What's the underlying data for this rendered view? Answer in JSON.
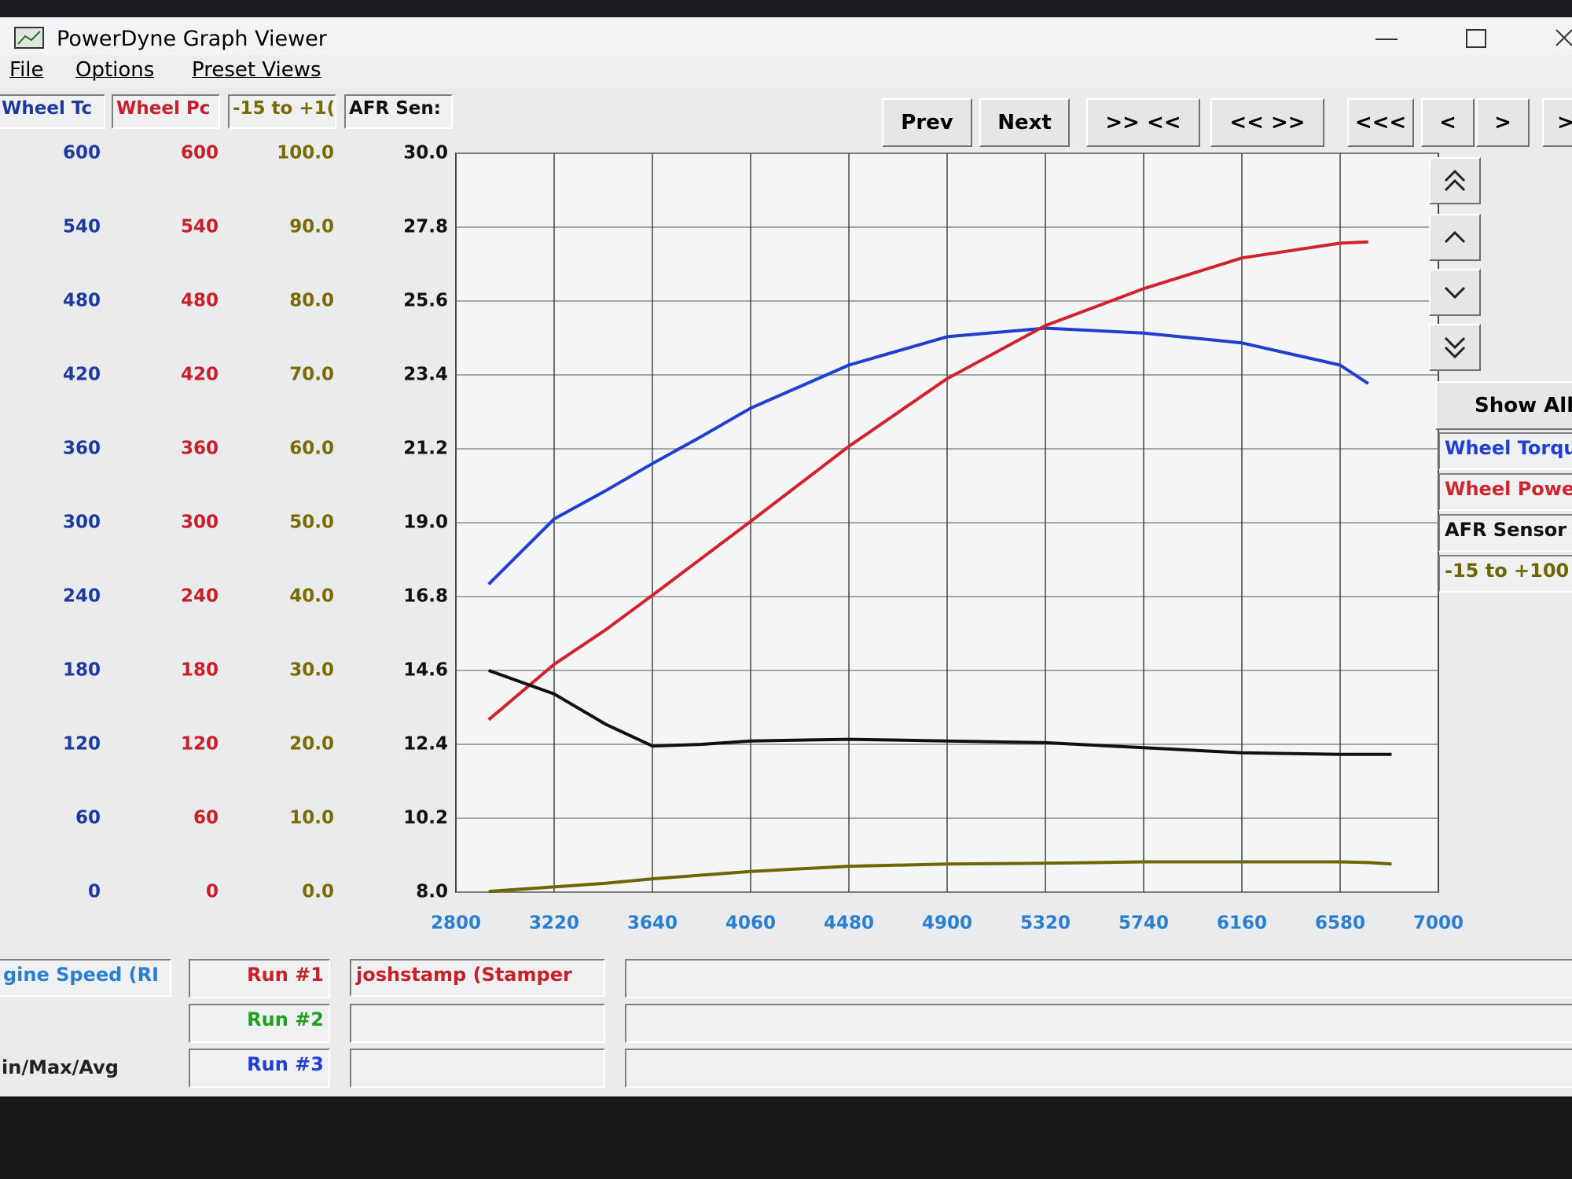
{
  "window": {
    "title": "PowerDyne Graph Viewer"
  },
  "menu": [
    "File",
    "Options",
    "Preset Views"
  ],
  "toolbar": [
    "Prev",
    "Next",
    ">> <<",
    "<< >>",
    "<<<",
    "<",
    ">",
    ">"
  ],
  "side_panel": {
    "show_all": "Show All"
  },
  "bottom": {
    "x_axis_name": "gine Speed (RI",
    "stats_label": "in/Max/Avg",
    "run_name": "joshstamp (Stamper",
    "runs": [
      {
        "label": "Run #1",
        "color": "#c8202a"
      },
      {
        "label": "Run #2",
        "color": "#1fa01f"
      },
      {
        "label": "Run #3",
        "color": "#1f3fcf"
      }
    ]
  },
  "chart_data": {
    "type": "line",
    "xlim": [
      2800,
      7000
    ],
    "xticks": [
      2800,
      3220,
      3640,
      4060,
      4480,
      4900,
      5320,
      5740,
      6160,
      6580,
      7000
    ],
    "x": [
      2940,
      3220,
      3440,
      3640,
      3850,
      4060,
      4480,
      4900,
      5320,
      5740,
      6160,
      6580,
      6700,
      6800
    ],
    "grid": true,
    "axes": [
      {
        "name": "Wheel Tc",
        "color": "#1f3a9c",
        "ylim": [
          0,
          600
        ],
        "yticks": [
          0,
          60,
          120,
          180,
          240,
          300,
          360,
          420,
          480,
          540,
          600
        ]
      },
      {
        "name": "Wheel Pc",
        "color": "#c8202a",
        "ylim": [
          0,
          600
        ],
        "yticks": [
          0,
          60,
          120,
          180,
          240,
          300,
          360,
          420,
          480,
          540,
          600
        ]
      },
      {
        "name": "-15 to +1(",
        "color": "#7a6a00",
        "ylim": [
          0,
          100
        ],
        "yticks": [
          {
            "value": 0,
            "label": "0.0"
          },
          {
            "value": 10,
            "label": "10.0"
          },
          {
            "value": 20,
            "label": "20.0"
          },
          {
            "value": 30,
            "label": "30.0"
          },
          {
            "value": 40,
            "label": "40.0"
          },
          {
            "value": 50,
            "label": "50.0"
          },
          {
            "value": 60,
            "label": "60.0"
          },
          {
            "value": 70,
            "label": "70.0"
          },
          {
            "value": 80,
            "label": "80.0"
          },
          {
            "value": 90,
            "label": "90.0"
          },
          {
            "value": 100,
            "label": "100.0"
          }
        ]
      },
      {
        "name": "AFR Sen:",
        "color": "#111111",
        "ylim": [
          8,
          30
        ],
        "yticks": [
          {
            "value": 8,
            "label": "8.0"
          },
          10.2,
          12.4,
          14.6,
          16.8,
          {
            "value": 19,
            "label": "19.0"
          },
          21.2,
          23.4,
          25.6,
          27.8,
          {
            "value": 30,
            "label": "30.0"
          }
        ]
      }
    ],
    "series": [
      {
        "name": "Wheel Torqu",
        "color": "#1f3fcf",
        "axis": 0,
        "values": [
          250,
          303,
          326,
          348,
          370,
          393,
          428,
          451,
          458,
          454,
          446,
          428,
          413,
          null
        ]
      },
      {
        "name": "Wheel Powe",
        "color": "#d0232b",
        "axis": 1,
        "values": [
          140,
          185,
          213,
          241,
          271,
          301,
          362,
          417,
          460,
          490,
          515,
          527,
          528,
          null
        ]
      },
      {
        "name": "AFR Sensor",
        "color": "#111111",
        "axis": 3,
        "values": [
          14.6,
          13.9,
          13.0,
          12.35,
          12.4,
          12.5,
          12.55,
          12.5,
          12.45,
          12.3,
          12.15,
          12.1,
          12.1,
          12.1
        ]
      },
      {
        "name": "-15 to +100 ",
        "color": "#6e6600",
        "axis": 2,
        "values": [
          0.1,
          0.7,
          1.2,
          1.8,
          2.3,
          2.8,
          3.5,
          3.8,
          3.9,
          4.1,
          4.1,
          4.1,
          4.0,
          3.8
        ]
      }
    ]
  }
}
